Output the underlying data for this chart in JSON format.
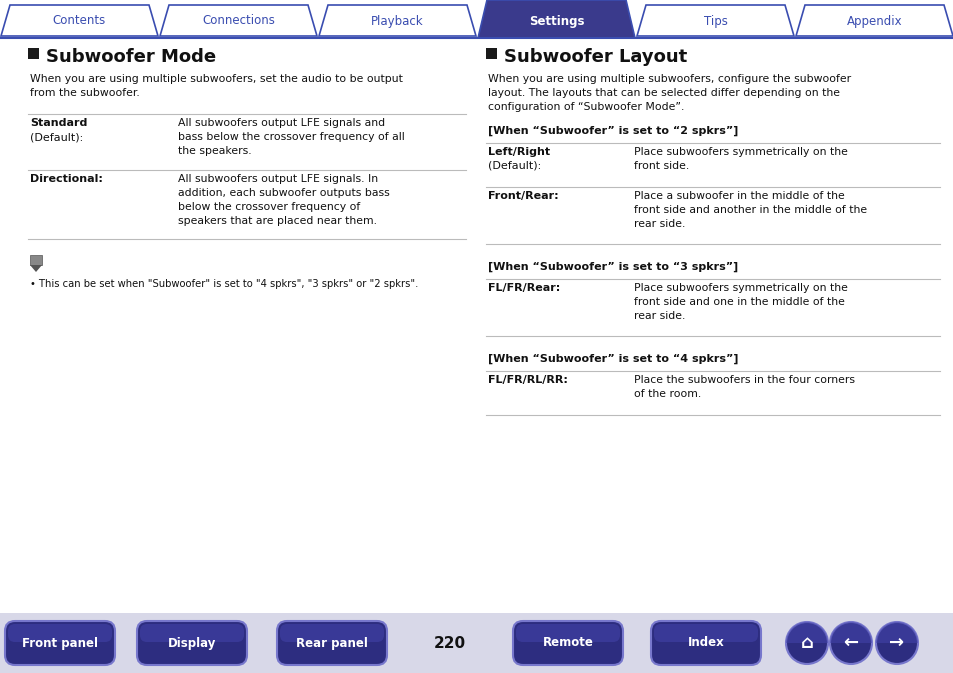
{
  "bg_color": "#ffffff",
  "nav_tabs": [
    "Contents",
    "Connections",
    "Playback",
    "Settings",
    "Tips",
    "Appendix"
  ],
  "nav_active": 3,
  "nav_tab_color_active": "#3a3a8c",
  "nav_tab_color_inactive": "#ffffff",
  "nav_text_color_active": "#ffffff",
  "nav_text_color_inactive": "#3a4db0",
  "nav_border_color": "#3a4db0",
  "nav_line_color": "#3a4db0",
  "left_title": "Subwoofer Mode",
  "left_intro": "When you are using multiple subwoofers, set the audio to be output\nfrom the subwoofer.",
  "left_rows": [
    {
      "label_line1": "Standard",
      "label_line2": "(Default):",
      "label_bold": true,
      "text": "All subwoofers output LFE signals and\nbass below the crossover frequency of all\nthe speakers."
    },
    {
      "label_line1": "Directional:",
      "label_line2": "",
      "label_bold": true,
      "text": "All subwoofers output LFE signals. In\naddition, each subwoofer outputs bass\nbelow the crossover frequency of\nspeakers that are placed near them."
    }
  ],
  "left_note": "• This can be set when \"Subwoofer\" is set to \"4 spkrs\", \"3 spkrs\" or \"2 spkrs\".",
  "right_title": "Subwoofer Layout",
  "right_intro": "When you are using multiple subwoofers, configure the subwoofer\nlayout. The layouts that can be selected differ depending on the\nconfiguration of “Subwoofer Mode”.",
  "right_sections": [
    {
      "heading": "[When “Subwoofer” is set to “2 spkrs”]",
      "rows": [
        {
          "label_line1": "Left/Right",
          "label_line2": "(Default):",
          "text": "Place subwoofers symmetrically on the\nfront side."
        },
        {
          "label_line1": "Front/Rear:",
          "label_line2": "",
          "text": "Place a subwoofer in the middle of the\nfront side and another in the middle of the\nrear side."
        }
      ]
    },
    {
      "heading": "[When “Subwoofer” is set to “3 spkrs”]",
      "rows": [
        {
          "label_line1": "FL/FR/Rear:",
          "label_line2": "",
          "text": "Place subwoofers symmetrically on the\nfront side and one in the middle of the\nrear side."
        }
      ]
    },
    {
      "heading": "[When “Subwoofer” is set to “4 spkrs”]",
      "rows": [
        {
          "label_line1": "FL/FR/RL/RR:",
          "label_line2": "",
          "text": "Place the subwoofers in the four corners\nof the room."
        }
      ]
    }
  ],
  "bottom_buttons": [
    "Front panel",
    "Display",
    "Rear panel",
    "Remote",
    "Index"
  ],
  "page_number": "220",
  "btn_color_dark": "#2d2d80",
  "btn_color_mid": "#4444aa",
  "btn_text_color": "#ffffff",
  "divider_color": "#bbbbbb",
  "title_square_color": "#1a1a1a",
  "body_text_color": "#111111",
  "label_bold_color": "#111111",
  "bottom_bar_color": "#d8d8e8"
}
